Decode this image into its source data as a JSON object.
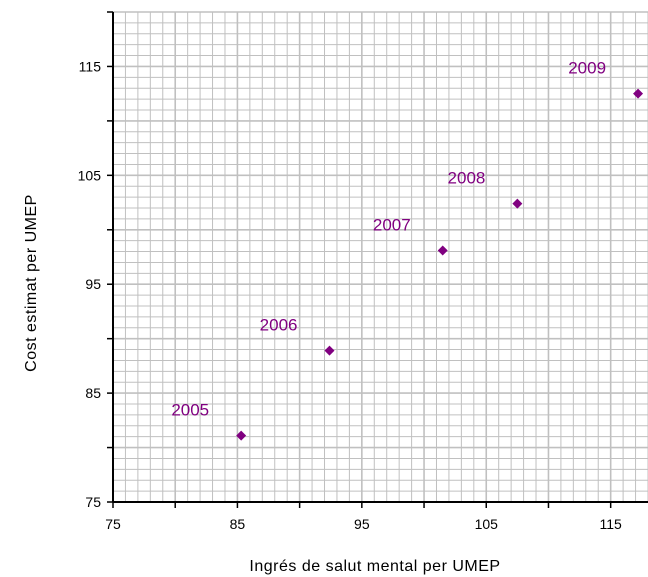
{
  "chart_data": {
    "type": "scatter",
    "title": "",
    "xlabel": "Ingrés de salut mental per UMEP",
    "ylabel": "Cost estimat  per UMEP",
    "xlim": [
      75,
      118
    ],
    "ylim": [
      75,
      120
    ],
    "x_ticks": [
      "75",
      "85",
      "95",
      "105",
      "115"
    ],
    "y_ticks": [
      "75",
      "85",
      "95",
      "105",
      "115"
    ],
    "grid": true,
    "legend": "none",
    "series": [
      {
        "points": [
          {
            "label": "2005",
            "x": 85.3,
            "y": 81.1
          },
          {
            "label": "2006",
            "x": 92.4,
            "y": 88.9
          },
          {
            "label": "2007",
            "x": 101.5,
            "y": 98.1
          },
          {
            "label": "2008",
            "x": 107.5,
            "y": 102.4
          },
          {
            "label": "2009",
            "x": 117.2,
            "y": 112.5
          }
        ]
      }
    ],
    "colors": {
      "marker": "#800080",
      "label": "#800080",
      "grid": "#c0c0c0",
      "axis": "#000000"
    }
  }
}
